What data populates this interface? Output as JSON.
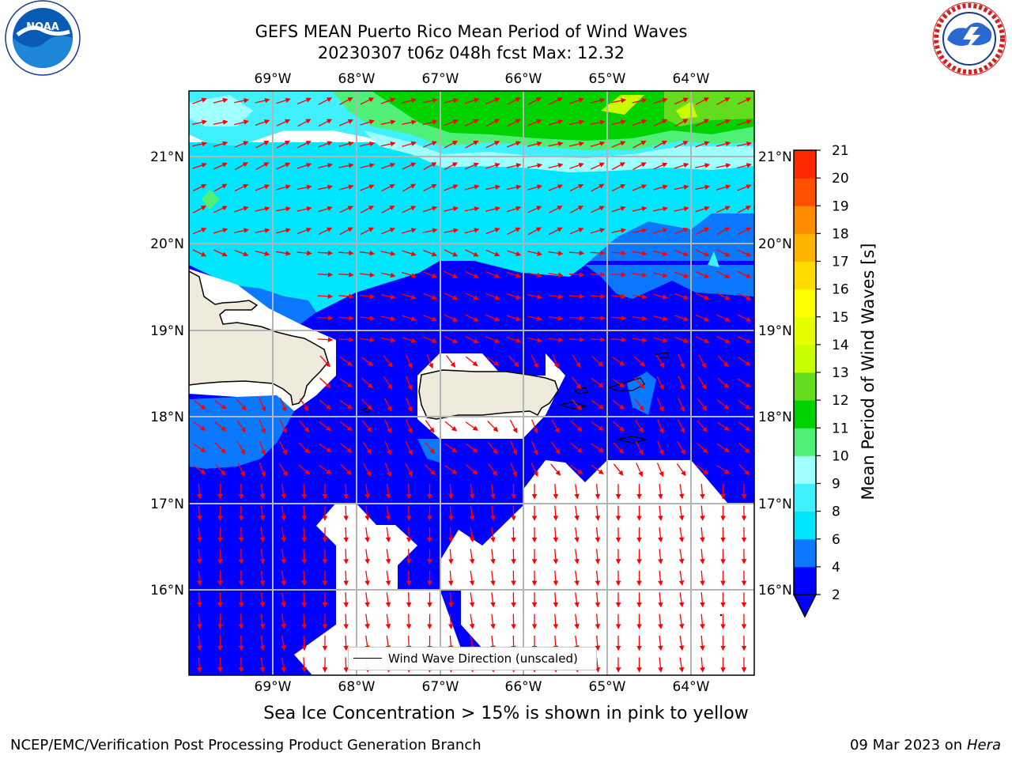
{
  "title": {
    "line1": "GEFS MEAN Puerto Rico Mean Period of Wind Waves",
    "line2": "20230307 t06z 048h fcst   Max: 12.32"
  },
  "map": {
    "lon_ticks": [
      "69°W",
      "68°W",
      "67°W",
      "66°W",
      "65°W",
      "64°W"
    ],
    "lat_ticks": [
      "21°N",
      "20°N",
      "19°N",
      "18°N",
      "17°N",
      "16°N"
    ],
    "legend_label": "Wind Wave Direction (unscaled)",
    "arrow_color": "#ff0000",
    "land_color": "#efebdc"
  },
  "colorbar": {
    "title": "Mean Period of Wind Waves [s]",
    "levels": [
      "2",
      "4",
      "6",
      "8",
      "9",
      "10",
      "11",
      "12",
      "13",
      "14",
      "15",
      "16",
      "17",
      "18",
      "19",
      "20",
      "21"
    ],
    "colors": [
      "#0000ff",
      "#0a78ff",
      "#00e6ff",
      "#40f0ff",
      "#a0ffff",
      "#50f078",
      "#00d200",
      "#64dc1e",
      "#c8ff00",
      "#e6ff00",
      "#ffff00",
      "#ffdc00",
      "#ffb400",
      "#ff8c00",
      "#ff5000",
      "#ff2800",
      "#ff0000"
    ]
  },
  "subtitle": "Sea Ice Concentration > 15% is shown in pink to yellow",
  "footer": {
    "left": "NCEP/EMC/Verification Post Processing Product Generation Branch",
    "right_date": "09 Mar 2023 on",
    "right_host": "Hera"
  },
  "logos": {
    "noaa": "NOAA",
    "nws_text": "NATIONAL WEATHER SERVICE"
  }
}
